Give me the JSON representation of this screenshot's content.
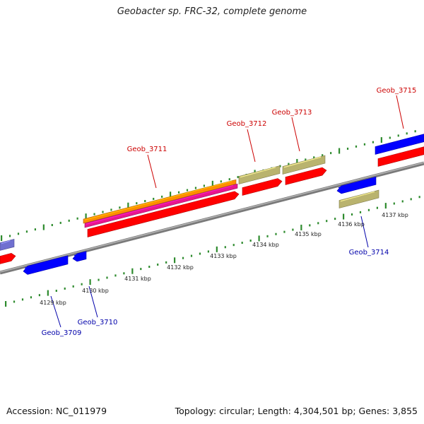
{
  "header": {
    "title": "Geobacter sp. FRC-32, complete genome"
  },
  "footer": {
    "accession": "Accession: NC_011979",
    "summary": "Topology: circular; Length: 4,304,501 bp; Genes: 3,855"
  },
  "genes_forward": [
    {
      "label": "Geob_3711",
      "color": "#cc0000"
    },
    {
      "label": "Geob_3712",
      "color": "#cc0000"
    },
    {
      "label": "Geob_3713",
      "color": "#cc0000"
    },
    {
      "label": "Geob_3715",
      "color": "#cc0000"
    }
  ],
  "genes_reverse": [
    {
      "label": "Geob_3709",
      "color": "#0000aa"
    },
    {
      "label": "Geob_3710",
      "color": "#0000aa"
    },
    {
      "label": "Geob_3714",
      "color": "#0000aa"
    }
  ],
  "scale_labels": [
    "4129 kbp",
    "4130 kbp",
    "4131 kbp",
    "4132 kbp",
    "4133 kbp",
    "4134 kbp",
    "4135 kbp",
    "4136 kbp",
    "4137 kbp"
  ],
  "colors": {
    "backbone": "#8a8a8a",
    "tick": "#2e8b2e",
    "cds": "#ff0000",
    "rrna": "#e8168e",
    "gene": "#ff8c00",
    "other": "#b9b36e",
    "reverse_cds": "#0000ff",
    "faded": "#7070d0"
  }
}
